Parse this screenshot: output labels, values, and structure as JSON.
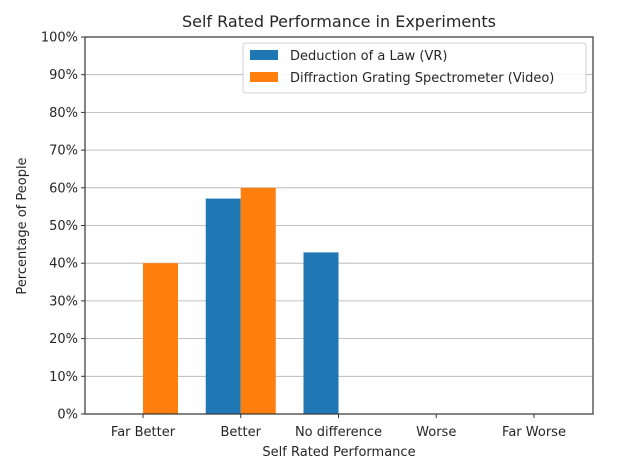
{
  "chart_data": {
    "type": "bar",
    "title": "Self Rated Performance in Experiments",
    "xlabel": "Self Rated Performance",
    "ylabel": "Percentage of People",
    "categories": [
      "Far Better",
      "Better",
      "No difference",
      "Worse",
      "Far Worse"
    ],
    "series": [
      {
        "name": "Deduction of a Law (VR)",
        "color": "#1f77b4",
        "values": [
          0,
          57.14,
          42.86,
          0,
          0
        ]
      },
      {
        "name": "Diffraction Grating Spectrometer (Video)",
        "color": "#ff7f0e",
        "values": [
          40,
          60,
          0,
          0,
          0
        ]
      }
    ],
    "ylim": [
      0,
      100
    ],
    "yticks": [
      0,
      10,
      20,
      30,
      40,
      50,
      60,
      70,
      80,
      90,
      100
    ],
    "ytick_labels": [
      "0%",
      "10%",
      "20%",
      "30%",
      "40%",
      "50%",
      "60%",
      "70%",
      "80%",
      "90%",
      "100%"
    ],
    "grid": "y",
    "legend_position": "top-right"
  }
}
